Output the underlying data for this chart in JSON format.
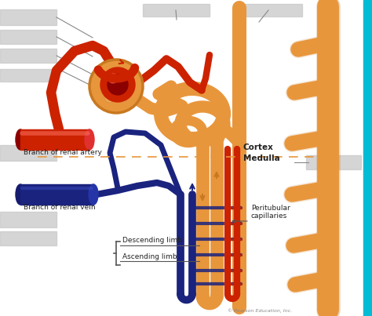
{
  "bg_color": "#ffffff",
  "red": "#cc2200",
  "dark_red": "#8b0000",
  "blue": "#1a237e",
  "blue_med": "#283593",
  "orange": "#e8963c",
  "orange_dark": "#c87820",
  "orange_light": "#f0b060",
  "gray_box": "#c8c8c8",
  "cyan_strip": "#00bcd4",
  "text_dark": "#222222",
  "text_gray": "#555555",
  "dashed_orange": "#e8963c",
  "label_branch_artery": "Branch of renal artery",
  "label_branch_vein": "Branch of renal vein",
  "label_cortex": "Cortex",
  "label_medulla": "Medulla",
  "label_peritubular": "Peritubular\ncapillaries",
  "label_descending": "Descending limb",
  "label_ascending": "Ascending limb",
  "figsize": [
    4.74,
    4.03
  ],
  "dpi": 100
}
